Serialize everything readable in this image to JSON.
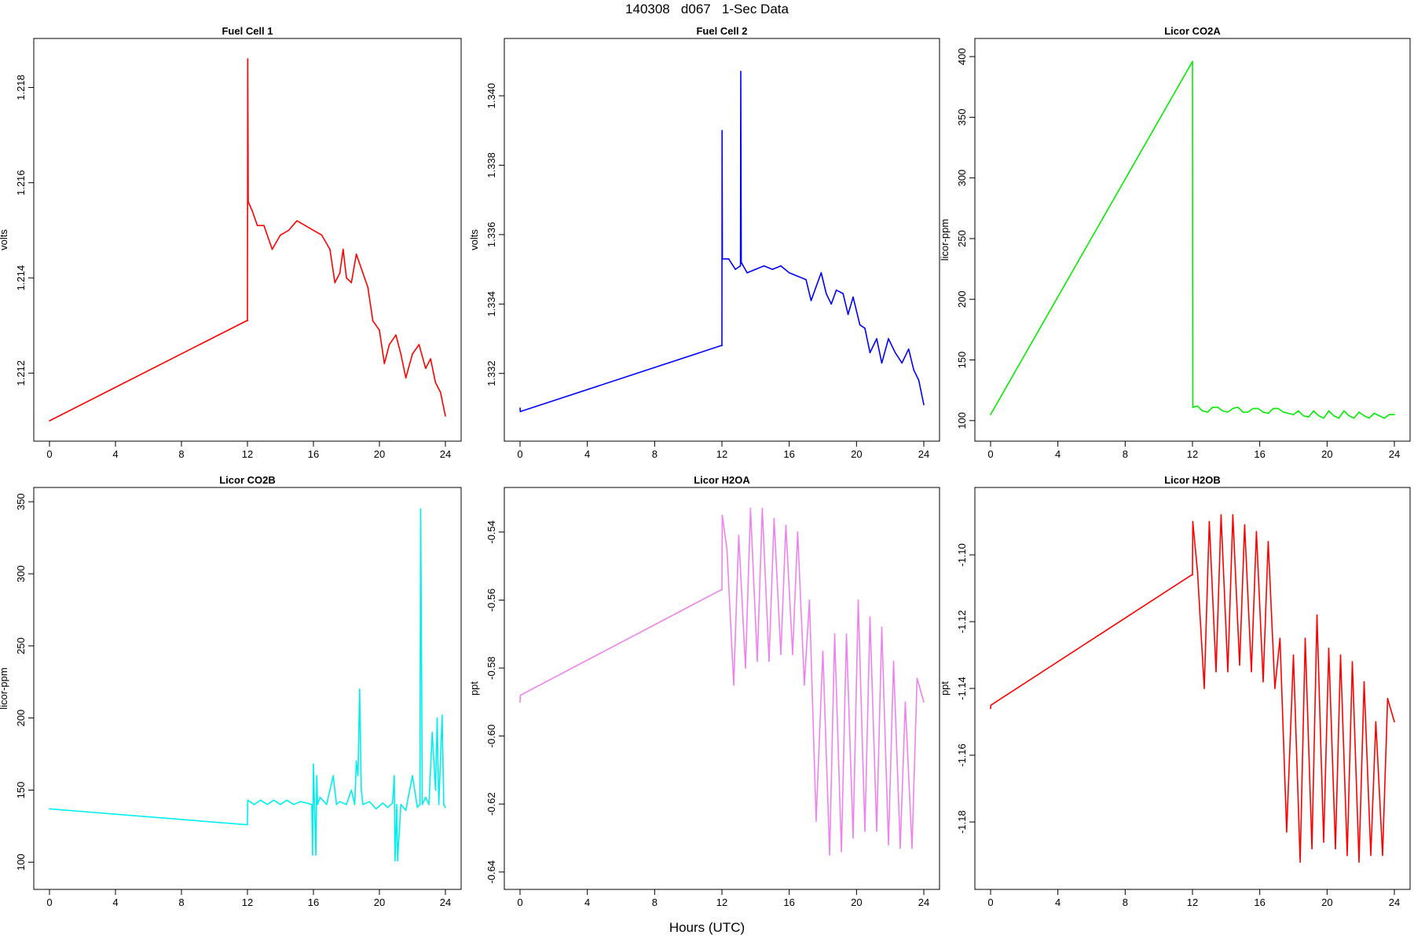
{
  "page": {
    "title": "140308   d067   1-Sec Data",
    "xlabel": "Hours (UTC)"
  },
  "chart_data": [
    {
      "type": "line",
      "title": "Fuel Cell 1",
      "ylabel": "volts",
      "color": "#ff0000",
      "xlim": [
        0,
        24
      ],
      "ylim": [
        1.2109,
        1.2187
      ],
      "xticks": [
        0,
        4,
        8,
        12,
        16,
        20,
        24
      ],
      "yticks": [
        "1.212",
        "1.214",
        "1.216",
        "1.218"
      ],
      "series": [
        {
          "x": [
            0,
            0.02,
            11.95,
            12.0,
            12.02,
            12.05,
            12.3,
            12.6,
            13,
            13.5,
            14,
            14.5,
            15,
            15.5,
            16,
            16.5,
            17,
            17.3,
            17.6,
            17.8,
            18,
            18.3,
            18.6,
            19,
            19.3,
            19.6,
            20,
            20.3,
            20.6,
            21,
            21.3,
            21.6,
            22,
            22.4,
            22.8,
            23.1,
            23.4,
            23.7,
            24
          ],
          "y": [
            1.211,
            1.211,
            1.2131,
            1.2131,
            1.2186,
            1.2156,
            1.2154,
            1.2151,
            1.2151,
            1.2146,
            1.2149,
            1.215,
            1.2152,
            1.2151,
            1.215,
            1.2149,
            1.2146,
            1.2139,
            1.2141,
            1.2146,
            1.214,
            1.2139,
            1.2145,
            1.2141,
            1.2138,
            1.2131,
            1.2129,
            1.2122,
            1.2126,
            1.2128,
            1.2124,
            1.2119,
            1.2124,
            1.2126,
            1.2121,
            1.2123,
            1.2118,
            1.2116,
            1.2111
          ]
        }
      ]
    },
    {
      "type": "line",
      "title": "Fuel Cell 2",
      "ylabel": "volts",
      "color": "#0000ff",
      "xlim": [
        0,
        24
      ],
      "ylim": [
        1.3305,
        1.3412
      ],
      "xticks": [
        0,
        4,
        8,
        12,
        16,
        20,
        24
      ],
      "yticks": [
        "1.332",
        "1.334",
        "1.336",
        "1.338",
        "1.340"
      ],
      "series": [
        {
          "x": [
            0,
            0.02,
            11.95,
            12.0,
            12.01,
            12.03,
            12.4,
            12.8,
            13.1,
            13.12,
            13.15,
            13.5,
            14,
            14.5,
            15,
            15.5,
            16,
            16.5,
            17,
            17.3,
            17.6,
            17.9,
            18.2,
            18.5,
            18.8,
            19.2,
            19.5,
            19.8,
            20.2,
            20.5,
            20.8,
            21.2,
            21.5,
            21.9,
            22.3,
            22.7,
            23.1,
            23.4,
            23.7,
            24
          ],
          "y": [
            1.331,
            1.3309,
            1.3328,
            1.3328,
            1.339,
            1.3353,
            1.3353,
            1.335,
            1.3351,
            1.3407,
            1.3352,
            1.3349,
            1.335,
            1.3351,
            1.335,
            1.3351,
            1.3349,
            1.3348,
            1.3347,
            1.3341,
            1.3345,
            1.3349,
            1.3343,
            1.334,
            1.3344,
            1.3343,
            1.3337,
            1.3342,
            1.3334,
            1.3333,
            1.3326,
            1.333,
            1.3323,
            1.333,
            1.3326,
            1.3323,
            1.3327,
            1.3321,
            1.3318,
            1.3311
          ]
        }
      ]
    },
    {
      "type": "line",
      "title": "Licor CO2A",
      "ylabel": "licor-ppm",
      "color": "#00ee00",
      "xlim": [
        0,
        24
      ],
      "ylim": [
        96,
        402
      ],
      "xticks": [
        0,
        4,
        8,
        12,
        16,
        20,
        24
      ],
      "yticks": [
        "100",
        "150",
        "200",
        "250",
        "300",
        "350",
        "400"
      ],
      "series": [
        {
          "x": [
            0,
            12.0,
            12.02,
            12.3,
            12.6,
            12.9,
            13.2,
            13.5,
            13.8,
            14.1,
            14.4,
            14.7,
            15.0,
            15.3,
            15.6,
            15.9,
            16.2,
            16.5,
            16.8,
            17.1,
            17.4,
            17.7,
            18.0,
            18.3,
            18.6,
            18.9,
            19.2,
            19.5,
            19.8,
            20.1,
            20.4,
            20.7,
            21.0,
            21.3,
            21.6,
            21.9,
            22.2,
            22.5,
            22.8,
            23.1,
            23.4,
            23.7,
            24
          ],
          "y": [
            105,
            396,
            111,
            112,
            108,
            107,
            111,
            111,
            108,
            107,
            110,
            111,
            107,
            107,
            110,
            110,
            107,
            106,
            110,
            110,
            107,
            106,
            105,
            108,
            104,
            103,
            108,
            104,
            102,
            108,
            104,
            102,
            108,
            104,
            102,
            107,
            104,
            102,
            106,
            104,
            102,
            105,
            105
          ]
        }
      ]
    },
    {
      "type": "line",
      "title": "Licor CO2B",
      "ylabel": "licor-ppm",
      "color": "#00eeee",
      "xlim": [
        0,
        24
      ],
      "ylim": [
        92,
        349
      ],
      "xticks": [
        0,
        4,
        8,
        12,
        16,
        20,
        24
      ],
      "yticks": [
        "100",
        "150",
        "200",
        "250",
        "300",
        "350"
      ],
      "series": [
        {
          "x": [
            0,
            11.95,
            12.0,
            12.02,
            12.4,
            12.8,
            13.2,
            13.6,
            14.0,
            14.4,
            14.8,
            15.2,
            15.6,
            15.9,
            15.95,
            16.0,
            16.15,
            16.2,
            16.25,
            16.4,
            16.8,
            17.2,
            17.4,
            17.6,
            18.0,
            18.3,
            18.5,
            18.6,
            18.7,
            18.8,
            18.9,
            19.0,
            19.4,
            19.8,
            20.2,
            20.5,
            20.8,
            20.9,
            20.95,
            21.05,
            21.1,
            21.3,
            21.6,
            22.0,
            22.3,
            22.45,
            22.5,
            22.6,
            22.8,
            23.0,
            23.2,
            23.4,
            23.5,
            23.6,
            23.8,
            23.9,
            24
          ],
          "y": [
            137,
            126,
            126,
            143,
            140,
            143,
            140,
            143,
            140,
            143,
            140,
            142,
            141,
            140,
            105,
            168,
            105,
            160,
            140,
            145,
            140,
            160,
            140,
            142,
            140,
            150,
            140,
            170,
            160,
            220,
            150,
            140,
            142,
            137,
            141,
            138,
            141,
            160,
            101,
            140,
            101,
            140,
            136,
            160,
            138,
            140,
            345,
            140,
            145,
            140,
            190,
            150,
            200,
            140,
            202,
            140,
            138
          ]
        }
      ]
    },
    {
      "type": "line",
      "title": "Licor H2OA",
      "ylabel": "ppt",
      "color": "#ee82ee",
      "xlim": [
        0,
        24
      ],
      "ylim": [
        -0.6405,
        -0.5315
      ],
      "xticks": [
        0,
        4,
        8,
        12,
        16,
        20,
        24
      ],
      "yticks": [
        "-0.64",
        "-0.62",
        "-0.60",
        "-0.58",
        "-0.56",
        "-0.54"
      ],
      "series": [
        {
          "x": [
            0,
            0.02,
            11.95,
            12.0,
            12.02,
            12.3,
            12.7,
            13.0,
            13.4,
            13.7,
            14.1,
            14.4,
            14.8,
            15.1,
            15.5,
            15.8,
            16.2,
            16.5,
            16.9,
            17.2,
            17.6,
            18.0,
            18.4,
            18.7,
            19.1,
            19.4,
            19.8,
            20.1,
            20.5,
            20.8,
            21.2,
            21.5,
            21.9,
            22.2,
            22.6,
            22.9,
            23.3,
            23.6,
            24
          ],
          "y": [
            -0.59,
            -0.588,
            -0.557,
            -0.557,
            -0.535,
            -0.545,
            -0.585,
            -0.541,
            -0.58,
            -0.533,
            -0.578,
            -0.533,
            -0.578,
            -0.536,
            -0.576,
            -0.538,
            -0.576,
            -0.54,
            -0.585,
            -0.56,
            -0.625,
            -0.575,
            -0.635,
            -0.57,
            -0.634,
            -0.57,
            -0.63,
            -0.56,
            -0.628,
            -0.565,
            -0.628,
            -0.568,
            -0.632,
            -0.578,
            -0.633,
            -0.59,
            -0.633,
            -0.583,
            -0.59
          ]
        }
      ]
    },
    {
      "type": "line",
      "title": "Licor H2OB",
      "ylabel": "ppt",
      "color": "#ff0000",
      "xlim": [
        0,
        24
      ],
      "ylim": [
        -1.1955,
        -1.0845
      ],
      "xticks": [
        0,
        4,
        8,
        12,
        16,
        20,
        24
      ],
      "yticks": [
        "-1.18",
        "-1.16",
        "-1.14",
        "-1.12",
        "-1.10"
      ],
      "series": [
        {
          "x": [
            0,
            0.02,
            11.95,
            12.0,
            12.02,
            12.3,
            12.7,
            13.0,
            13.4,
            13.7,
            14.1,
            14.4,
            14.8,
            15.1,
            15.5,
            15.8,
            16.2,
            16.5,
            16.9,
            17.2,
            17.6,
            18.0,
            18.4,
            18.7,
            19.1,
            19.4,
            19.8,
            20.1,
            20.5,
            20.8,
            21.2,
            21.5,
            21.9,
            22.2,
            22.6,
            22.9,
            23.3,
            23.6,
            24
          ],
          "y": [
            -1.146,
            -1.145,
            -1.106,
            -1.106,
            -1.09,
            -1.105,
            -1.14,
            -1.09,
            -1.135,
            -1.088,
            -1.135,
            -1.088,
            -1.133,
            -1.091,
            -1.135,
            -1.093,
            -1.138,
            -1.096,
            -1.14,
            -1.125,
            -1.183,
            -1.13,
            -1.192,
            -1.125,
            -1.188,
            -1.118,
            -1.186,
            -1.128,
            -1.188,
            -1.13,
            -1.19,
            -1.132,
            -1.192,
            -1.138,
            -1.19,
            -1.15,
            -1.19,
            -1.143,
            -1.15
          ]
        }
      ]
    }
  ]
}
